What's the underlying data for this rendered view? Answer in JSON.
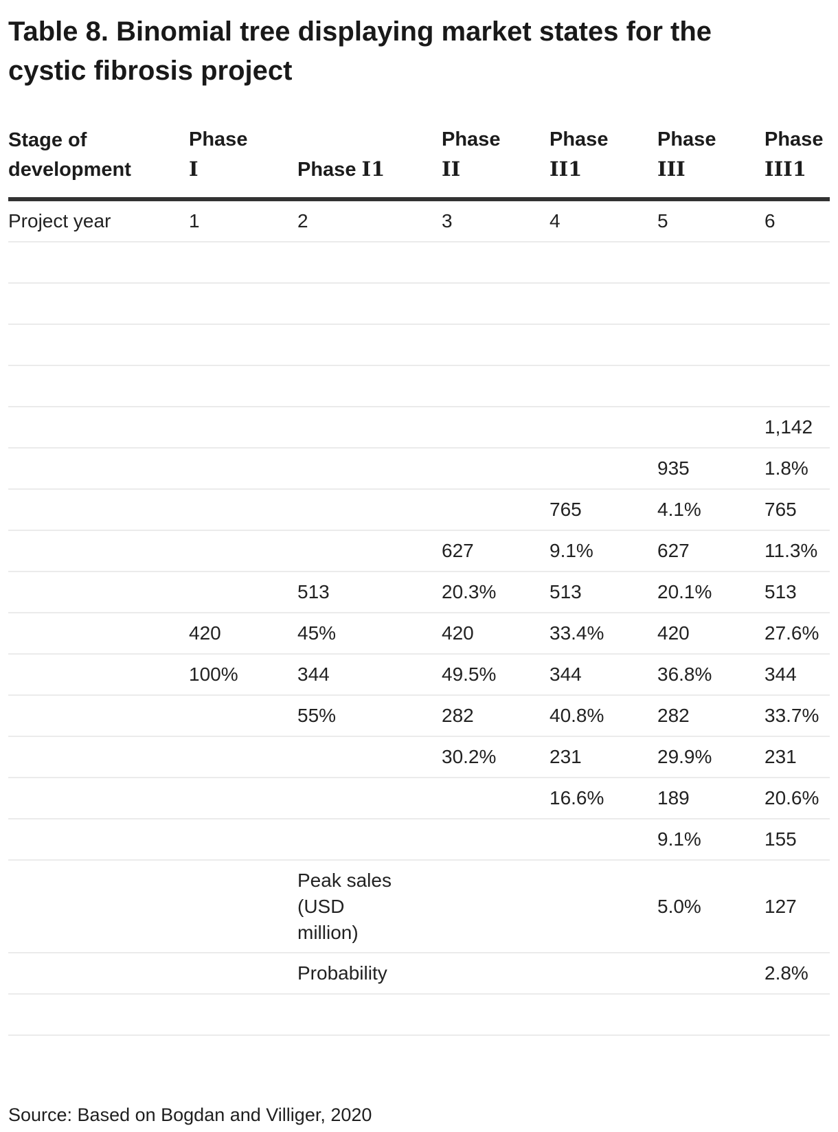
{
  "page": {
    "title_line1": "Table 8. Binomial tree displaying market states for the",
    "title_line2": "cystic fibrosis project",
    "source": "Source: Based on Bogdan and Villiger, 2020"
  },
  "table": {
    "header": {
      "stage_label": "Stage of development",
      "phases": [
        {
          "word": "Phase",
          "numeral": "I"
        },
        {
          "word": "Phase",
          "numeral": "I1"
        },
        {
          "word": "Phase",
          "numeral": "II"
        },
        {
          "word": "Phase",
          "numeral": "II1"
        },
        {
          "word": "Phase",
          "numeral": "III"
        },
        {
          "word": "Phase",
          "numeral": "III1"
        }
      ]
    },
    "rows": [
      {
        "label": "Project year",
        "cells": [
          "1",
          "2",
          "3",
          "4",
          "5",
          "6"
        ]
      },
      {
        "label": "",
        "cells": [
          "",
          "",
          "",
          "",
          "",
          ""
        ]
      },
      {
        "label": "",
        "cells": [
          "",
          "",
          "",
          "",
          "",
          ""
        ]
      },
      {
        "label": "",
        "cells": [
          "",
          "",
          "",
          "",
          "",
          ""
        ]
      },
      {
        "label": "",
        "cells": [
          "",
          "",
          "",
          "",
          "",
          ""
        ]
      },
      {
        "label": "",
        "cells": [
          "",
          "",
          "",
          "",
          "",
          "1,142"
        ]
      },
      {
        "label": "",
        "cells": [
          "",
          "",
          "",
          "",
          "935",
          "1.8%"
        ]
      },
      {
        "label": "",
        "cells": [
          "",
          "",
          "",
          "765",
          "4.1%",
          "765"
        ]
      },
      {
        "label": "",
        "cells": [
          "",
          "",
          "627",
          "9.1%",
          "627",
          "11.3%"
        ]
      },
      {
        "label": "",
        "cells": [
          "",
          "513",
          "20.3%",
          "513",
          "20.1%",
          "513"
        ]
      },
      {
        "label": "",
        "cells": [
          "420",
          "45%",
          "420",
          "33.4%",
          "420",
          "27.6%"
        ]
      },
      {
        "label": "",
        "cells": [
          "100%",
          "344",
          "49.5%",
          "344",
          "36.8%",
          "344"
        ]
      },
      {
        "label": "",
        "cells": [
          "",
          "55%",
          "282",
          "40.8%",
          "282",
          "33.7%"
        ]
      },
      {
        "label": "",
        "cells": [
          "",
          "",
          "30.2%",
          "231",
          "29.9%",
          "231"
        ]
      },
      {
        "label": "",
        "cells": [
          "",
          "",
          "",
          "16.6%",
          "189",
          "20.6%"
        ]
      },
      {
        "label": "",
        "cells": [
          "",
          "",
          "",
          "",
          "9.1%",
          "155"
        ]
      },
      {
        "label": "",
        "cells": [
          "",
          "Peak sales (USD million)",
          "",
          "",
          "5.0%",
          "127"
        ],
        "tall": true
      },
      {
        "label": "",
        "cells": [
          "",
          "Probability",
          "",
          "",
          "",
          "2.8%"
        ]
      },
      {
        "label": "",
        "cells": [
          "",
          "",
          "",
          "",
          "",
          ""
        ]
      }
    ]
  }
}
